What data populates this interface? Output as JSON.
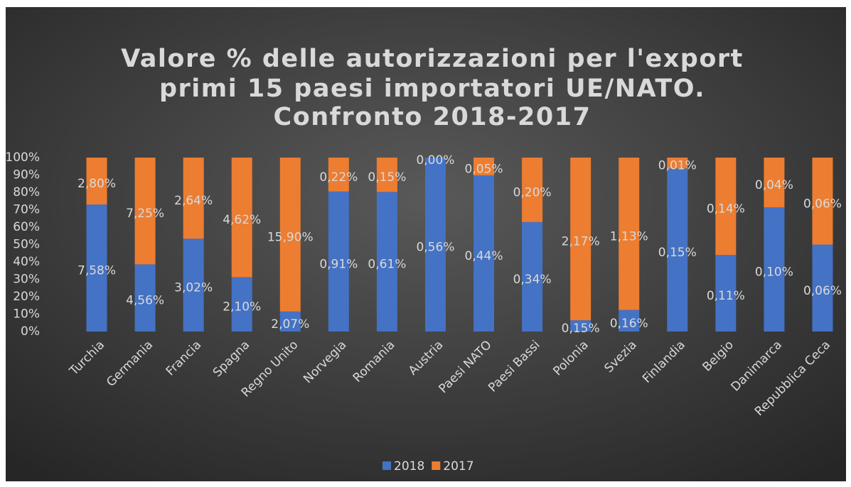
{
  "chart_data": {
    "type": "bar",
    "stacking": "percent",
    "title": [
      "Valore % delle autorizzazioni per l'export",
      "primi 15 paesi importatori UE/NATO.",
      "Confronto 2018-2017"
    ],
    "categories": [
      "Turchia",
      "Germania",
      "Francia",
      "Spagna",
      "Regno Unito",
      "Norvegia",
      "Romania",
      "Austria",
      "Paesi NATO",
      "Paesi Bassi",
      "Polonia",
      "Svezia",
      "Finlandia",
      "Belgio",
      "Danimarca",
      "Repubblica Ceca"
    ],
    "series": [
      {
        "name": "2018",
        "color": "#4472c4",
        "values": [
          7.58,
          4.56,
          3.02,
          2.1,
          2.07,
          0.91,
          0.61,
          0.56,
          0.44,
          0.34,
          0.15,
          0.16,
          0.15,
          0.11,
          0.1,
          0.06
        ],
        "value_labels": [
          "7,58%",
          "4,56%",
          "3,02%",
          "2,10%",
          "2,07%",
          "0,91%",
          "0,61%",
          "0,56%",
          "0,44%",
          "0,34%",
          "0,15%",
          "0,16%",
          "0,15%",
          "0,11%",
          "0,10%",
          "0,06%"
        ]
      },
      {
        "name": "2017",
        "color": "#ed7d31",
        "values": [
          2.8,
          7.25,
          2.64,
          4.62,
          15.9,
          0.22,
          0.15,
          0.0,
          0.05,
          0.2,
          2.17,
          1.13,
          0.01,
          0.14,
          0.04,
          0.06
        ],
        "value_labels": [
          "2,80%",
          "7,25%",
          "2,64%",
          "4,62%",
          "15,90%",
          "0,22%",
          "0,15%",
          "0,00%",
          "0,05%",
          "0,20%",
          "2,17%",
          "1,13%",
          "0,01%",
          "0,14%",
          "0,04%",
          "0,06%"
        ]
      }
    ],
    "ylim": [
      0,
      100
    ],
    "yticks": [
      {
        "value": 0,
        "label": "0%"
      },
      {
        "value": 10,
        "label": "10%"
      },
      {
        "value": 20,
        "label": "20%"
      },
      {
        "value": 30,
        "label": "30%"
      },
      {
        "value": 40,
        "label": "40%"
      },
      {
        "value": 50,
        "label": "50%"
      },
      {
        "value": 60,
        "label": "60%"
      },
      {
        "value": 70,
        "label": "70%"
      },
      {
        "value": 80,
        "label": "80%"
      },
      {
        "value": 90,
        "label": "90%"
      },
      {
        "value": 100,
        "label": "100%"
      }
    ],
    "grid": false,
    "legend": "bottom"
  }
}
